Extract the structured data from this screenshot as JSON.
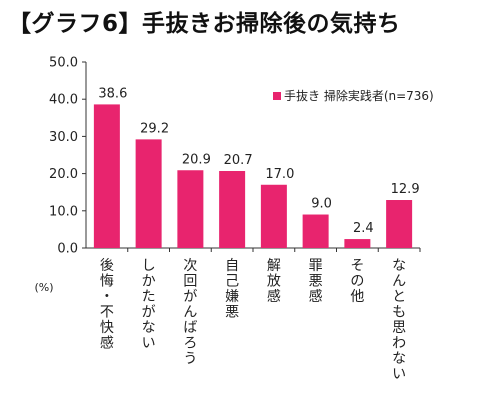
{
  "chart_data": {
    "type": "bar",
    "title": "【グラフ6】手抜きお掃除後の気持ち",
    "unit": "(%)",
    "categories": [
      "後悔・不快感",
      "しかたがない",
      "次回がんばろう",
      "自己嫌悪",
      "解放感",
      "罪悪感",
      "その他",
      "なんとも思わない"
    ],
    "series": [
      {
        "name": "手抜き 掃除実践者(n=736)",
        "values": [
          38.6,
          29.2,
          20.9,
          20.7,
          17.0,
          9.0,
          2.4,
          12.9
        ]
      }
    ],
    "value_labels": [
      "38.6",
      "29.2",
      "20.9",
      "20.7",
      "17.0",
      "9.0",
      "2.4",
      "12.9"
    ],
    "ylim": [
      0,
      50
    ],
    "yticks": [
      "0.0",
      "10.0",
      "20.0",
      "30.0",
      "40.0",
      "50.0"
    ],
    "grid": false,
    "legend_position": "top-right",
    "colors": {
      "bar": "#e8246e",
      "axis": "#333333"
    }
  }
}
